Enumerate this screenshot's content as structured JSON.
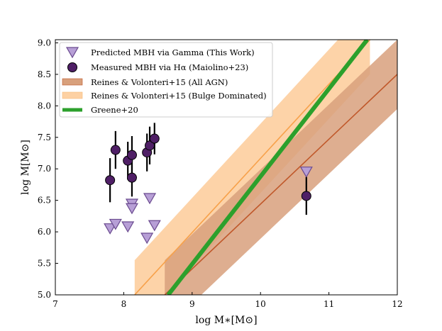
{
  "chart_data": {
    "type": "scatter",
    "title": "",
    "xlabel": "log M∗[M⊙]",
    "ylabel": "log M[M⊙]",
    "xlim": [
      7,
      12
    ],
    "ylim": [
      5.0,
      9.05
    ],
    "xticks": [
      "7",
      "8",
      "9",
      "10",
      "11",
      "12"
    ],
    "yticks": [
      "5.0",
      "5.5",
      "6.0",
      "6.5",
      "7.0",
      "7.5",
      "8.0",
      "8.5",
      "9.0"
    ],
    "xtick_values": [
      7,
      8,
      9,
      10,
      11,
      12
    ],
    "ytick_values": [
      5.0,
      5.5,
      6.0,
      6.5,
      7.0,
      7.5,
      8.0,
      8.5,
      9.0
    ],
    "legend_position": "top-left",
    "colors": {
      "predicted_fill": "#b79fd6",
      "predicted_edge": "#6a4a8f",
      "measured_fill": "#4f1f66",
      "errorbar": "#000000",
      "all_agn_band": "#d8a07c",
      "all_agn_line": "#c0582a",
      "bulge_band": "#fdd1a3",
      "bulge_line": "#f7a14a",
      "greene": "#2ca02c"
    },
    "series": [
      {
        "name": "Predicted MBH via Gamma (This Work)",
        "kind": "scatter-triangle",
        "points": [
          {
            "x": 7.8,
            "y": 6.05
          },
          {
            "x": 7.88,
            "y": 6.12
          },
          {
            "x": 8.06,
            "y": 6.08
          },
          {
            "x": 8.12,
            "y": 6.44
          },
          {
            "x": 8.12,
            "y": 6.37
          },
          {
            "x": 8.34,
            "y": 5.9
          },
          {
            "x": 8.38,
            "y": 6.53
          },
          {
            "x": 8.45,
            "y": 6.1
          },
          {
            "x": 10.67,
            "y": 6.95
          }
        ]
      },
      {
        "name": "Measured MBH via Hα (Maiolino+23)",
        "kind": "scatter-circle-errorbar",
        "points": [
          {
            "x": 7.8,
            "y": 6.82,
            "err": 0.35
          },
          {
            "x": 7.88,
            "y": 7.3,
            "err": 0.3
          },
          {
            "x": 8.06,
            "y": 7.13,
            "err": 0.3
          },
          {
            "x": 8.12,
            "y": 7.22,
            "err": 0.3
          },
          {
            "x": 8.12,
            "y": 6.86,
            "err": 0.3
          },
          {
            "x": 8.34,
            "y": 7.26,
            "err": 0.3
          },
          {
            "x": 8.38,
            "y": 7.37,
            "err": 0.3
          },
          {
            "x": 8.45,
            "y": 7.48,
            "err": 0.25
          },
          {
            "x": 10.67,
            "y": 6.57,
            "err": 0.3
          }
        ]
      },
      {
        "name": "Reines & Volonteri+15 (All AGN)",
        "kind": "band",
        "line": [
          [
            8.6,
            5.0
          ],
          [
            12.0,
            8.5
          ]
        ],
        "halfwidth": 0.55
      },
      {
        "name": "Reines & Volonteri+15 (Bulge Dominated)",
        "kind": "band",
        "line": [
          [
            8.16,
            5.0
          ],
          [
            11.6,
            9.05
          ]
        ],
        "halfwidth": 0.55
      },
      {
        "name": "Greene+20",
        "kind": "line",
        "line": [
          [
            8.65,
            5.0
          ],
          [
            11.56,
            9.05
          ]
        ]
      }
    ]
  }
}
